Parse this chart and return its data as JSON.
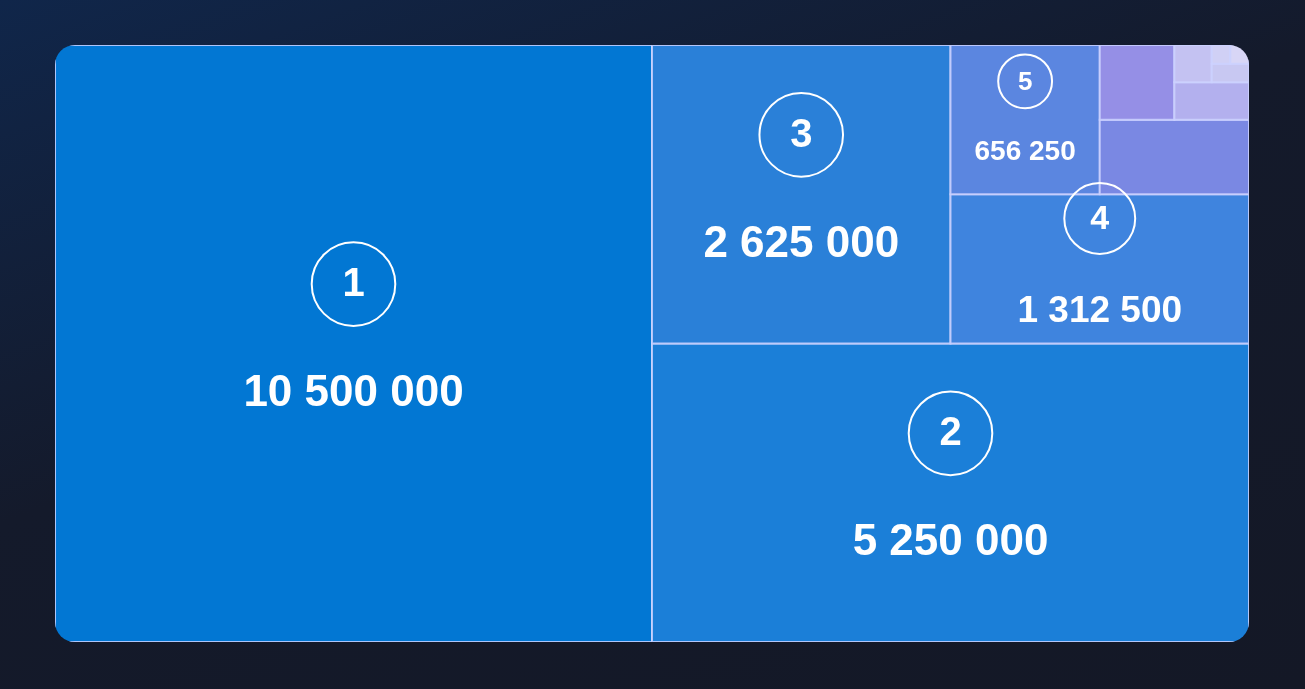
{
  "chart_data": {
    "type": "other",
    "categories": [
      "1",
      "2",
      "3",
      "4",
      "5",
      null,
      null,
      null,
      null,
      null,
      null,
      null
    ],
    "values": [
      10500000,
      5250000,
      2625000,
      1312500,
      656250,
      null,
      null,
      null,
      null,
      null,
      null,
      null
    ],
    "value_labels": [
      "10 500 000",
      "5 250 000",
      "2 625 000",
      "1 312 500",
      "656 250",
      null,
      null,
      null,
      null,
      null,
      null,
      null
    ],
    "colors": [
      "#0277d3",
      "#1b7fd8",
      "#2a80d8",
      "#3f84de",
      "#5b86e0",
      "#7a88e3",
      "#958fe6",
      "#b3b0ee",
      "#c4c2f2",
      "#c8c8f2",
      "#d0d0f5",
      "#d8d6f6"
    ]
  }
}
